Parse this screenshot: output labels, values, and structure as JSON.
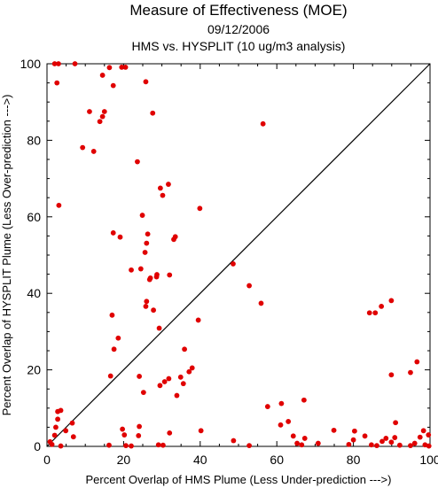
{
  "chart_data": {
    "type": "scatter",
    "title": "Measure of Effectiveness (MOE)",
    "subtitle_date": "09/12/2006",
    "subtitle_analysis": "HMS vs. HYSPLIT  (10 ug/m3 analysis)",
    "xlabel": "Percent Overlap of HMS Plume (Less Under-prediction --->)",
    "ylabel": "Percent Overlap of HYSPLIT Plume (Less Over-prediction --->)",
    "xlim": [
      0,
      100
    ],
    "ylim": [
      0,
      100
    ],
    "xticks": [
      "0",
      "20",
      "40",
      "60",
      "80",
      "100"
    ],
    "yticks": [
      "0",
      "20",
      "40",
      "60",
      "80",
      "100"
    ],
    "grid": false,
    "diagonal_line": true,
    "point_color": "#e00000",
    "points": [
      [
        2.0,
        100
      ],
      [
        3.0,
        100
      ],
      [
        7.3,
        100
      ],
      [
        2.6,
        95
      ],
      [
        16.3,
        99
      ],
      [
        19.5,
        99.1
      ],
      [
        20.5,
        99.1
      ],
      [
        14.5,
        97
      ],
      [
        17.3,
        94.3
      ],
      [
        25.8,
        95.3
      ],
      [
        11.1,
        87.5
      ],
      [
        14.5,
        86.2
      ],
      [
        15.0,
        87.5
      ],
      [
        13.8,
        84.9
      ],
      [
        27.6,
        87.1
      ],
      [
        9.3,
        78.1
      ],
      [
        12.2,
        77.1
      ],
      [
        23.6,
        74.4
      ],
      [
        56.4,
        84.3
      ],
      [
        29.6,
        67.5
      ],
      [
        30.2,
        65.6
      ],
      [
        31.7,
        68.5
      ],
      [
        3.1,
        63
      ],
      [
        24.9,
        60.4
      ],
      [
        39.9,
        62.2
      ],
      [
        17.3,
        55.8
      ],
      [
        19.1,
        54.7
      ],
      [
        26.3,
        55.5
      ],
      [
        26.0,
        53.1
      ],
      [
        33.1,
        54.1
      ],
      [
        33.5,
        54.8
      ],
      [
        25.6,
        50.7
      ],
      [
        22.0,
        46.1
      ],
      [
        24.5,
        46.4
      ],
      [
        27.0,
        44.0
      ],
      [
        28.6,
        44.3
      ],
      [
        28.7,
        44.9
      ],
      [
        32.0,
        44.8
      ],
      [
        26.8,
        43.6
      ],
      [
        48.6,
        47.7
      ],
      [
        52.8,
        42.0
      ],
      [
        55.9,
        37.4
      ],
      [
        26.0,
        37.9
      ],
      [
        25.8,
        36.6
      ],
      [
        27.8,
        35.6
      ],
      [
        17.0,
        34.3
      ],
      [
        39.5,
        33.0
      ],
      [
        29.3,
        30.9
      ],
      [
        84.2,
        34.9
      ],
      [
        85.7,
        34.9
      ],
      [
        87.3,
        36.6
      ],
      [
        89.9,
        38.1
      ],
      [
        18.6,
        28.3
      ],
      [
        17.5,
        25.4
      ],
      [
        35.9,
        25.4
      ],
      [
        37.9,
        20.5
      ],
      [
        37.1,
        19.5
      ],
      [
        34.9,
        18.1
      ],
      [
        31.8,
        17.7
      ],
      [
        30.7,
        16.9
      ],
      [
        29.5,
        15.9
      ],
      [
        35.6,
        16.4
      ],
      [
        33.9,
        13.3
      ],
      [
        24.1,
        18.3
      ],
      [
        25.2,
        14.1
      ],
      [
        16.6,
        18.4
      ],
      [
        89.9,
        18.7
      ],
      [
        94.9,
        19.3
      ],
      [
        96.6,
        22.1
      ],
      [
        2.8,
        9.1
      ],
      [
        3.6,
        9.4
      ],
      [
        2.8,
        7.1
      ],
      [
        6.6,
        6.1
      ],
      [
        2.3,
        5.0
      ],
      [
        4.9,
        4.1
      ],
      [
        2.0,
        2.9
      ],
      [
        0.8,
        1.2
      ],
      [
        1.3,
        0.5
      ],
      [
        3.6,
        0.1
      ],
      [
        6.9,
        2.5
      ],
      [
        16.2,
        0.3
      ],
      [
        19.7,
        4.5
      ],
      [
        20.6,
        0.2
      ],
      [
        20.2,
        3.0
      ],
      [
        22.0,
        0.1
      ],
      [
        23.9,
        2.8
      ],
      [
        24.1,
        5.2
      ],
      [
        29.1,
        0.4
      ],
      [
        30.3,
        0.3
      ],
      [
        32.0,
        3.5
      ],
      [
        40.2,
        4.1
      ],
      [
        48.7,
        1.5
      ],
      [
        52.8,
        0.2
      ],
      [
        57.6,
        10.4
      ],
      [
        61.2,
        11.2
      ],
      [
        61.0,
        5.6
      ],
      [
        63.0,
        6.5
      ],
      [
        64.3,
        2.7
      ],
      [
        65.3,
        0.8
      ],
      [
        66.5,
        0.4
      ],
      [
        67.1,
        12.1
      ],
      [
        67.3,
        2.1
      ],
      [
        70.8,
        0.8
      ],
      [
        74.9,
        4.2
      ],
      [
        78.8,
        0.5
      ],
      [
        80.3,
        4.0
      ],
      [
        80.0,
        1.7
      ],
      [
        83.0,
        2.7
      ],
      [
        84.7,
        0.4
      ],
      [
        86.1,
        0.2
      ],
      [
        87.5,
        1.3
      ],
      [
        88.5,
        2.1
      ],
      [
        89.9,
        1.1
      ],
      [
        91.0,
        6.2
      ],
      [
        90.8,
        2.3
      ],
      [
        92.1,
        0.3
      ],
      [
        94.9,
        0.2
      ],
      [
        96.0,
        0.8
      ],
      [
        97.4,
        2.4
      ],
      [
        98.3,
        4.1
      ],
      [
        98.7,
        0.4
      ],
      [
        99.6,
        3.0
      ],
      [
        99.7,
        0.1
      ]
    ]
  }
}
